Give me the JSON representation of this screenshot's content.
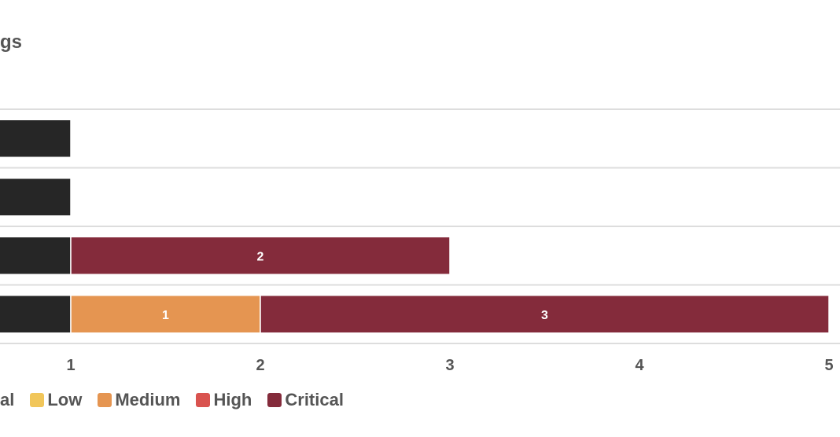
{
  "chart_data": {
    "type": "bar",
    "orientation": "horizontal",
    "stacked": true,
    "title": "gs",
    "xlabel": "",
    "ylabel": "",
    "categories": [
      "",
      "",
      "",
      ""
    ],
    "xlim": [
      0,
      5
    ],
    "x_ticks": [
      1,
      2,
      3,
      4,
      5
    ],
    "grid": true,
    "legend_position": "bottom",
    "series": [
      {
        "name": "al",
        "color": "#262626",
        "values": [
          1,
          1,
          1,
          1
        ]
      },
      {
        "name": "Low",
        "color": "#f1c65a",
        "values": [
          0,
          0,
          0,
          0
        ]
      },
      {
        "name": "Medium",
        "color": "#e59551",
        "values": [
          0,
          0,
          0,
          1
        ]
      },
      {
        "name": "High",
        "color": "#d9534f",
        "values": [
          0,
          0,
          0,
          0
        ]
      },
      {
        "name": "Critical",
        "color": "#842b3b",
        "values": [
          0,
          0,
          2,
          3
        ]
      }
    ],
    "data_labels": {
      "Medium": [
        "",
        "",
        "",
        "1"
      ],
      "Critical": [
        "",
        "",
        "2",
        "3"
      ]
    }
  },
  "colors": {
    "axis_text": "#555555",
    "grid": "#dddddd",
    "segment_border": "#ffffff"
  }
}
